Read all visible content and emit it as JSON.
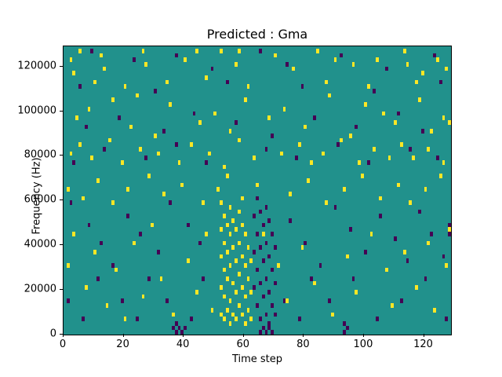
{
  "figure": {
    "title": "Predicted : Gma",
    "xlabel": "Time step",
    "ylabel": "Frequency (Hz)"
  },
  "chart_data": {
    "type": "heatmap",
    "title": "Predicted : Gma",
    "xlabel": "Time step",
    "ylabel": "Frequency (Hz)",
    "x_range": [
      0,
      129
    ],
    "y_range_hz": [
      0,
      129000
    ],
    "x_ticks": [
      0,
      20,
      40,
      60,
      80,
      100,
      120
    ],
    "y_ticks": [
      0,
      20000,
      40000,
      60000,
      80000,
      100000,
      120000
    ],
    "cell_width_steps": 1,
    "cell_height_hz": 2000,
    "f_unit_of_points": "kHz",
    "colors": {
      "background": "#21918c",
      "high": "#fde725",
      "low": "#440154",
      "axes": "#000000"
    },
    "legend": null,
    "grid": false,
    "yellow_cells": [
      [
        2,
        122
      ],
      [
        3,
        116
      ],
      [
        5,
        126
      ],
      [
        12,
        124
      ],
      [
        13,
        118
      ],
      [
        26,
        126
      ],
      [
        27,
        120
      ],
      [
        40,
        122
      ],
      [
        44,
        126
      ],
      [
        52,
        126
      ],
      [
        57,
        120
      ],
      [
        58,
        126
      ],
      [
        70,
        124
      ],
      [
        76,
        118
      ],
      [
        84,
        126
      ],
      [
        90,
        122
      ],
      [
        96,
        120
      ],
      [
        104,
        122
      ],
      [
        113,
        126
      ],
      [
        114,
        120
      ],
      [
        119,
        116
      ],
      [
        124,
        122
      ],
      [
        127,
        118
      ],
      [
        10,
        112
      ],
      [
        20,
        110
      ],
      [
        34,
        112
      ],
      [
        47,
        114
      ],
      [
        61,
        110
      ],
      [
        87,
        112
      ],
      [
        101,
        110
      ],
      [
        117,
        112
      ],
      [
        4,
        96
      ],
      [
        8,
        100
      ],
      [
        16,
        104
      ],
      [
        22,
        92
      ],
      [
        24,
        106
      ],
      [
        30,
        88
      ],
      [
        35,
        102
      ],
      [
        45,
        94
      ],
      [
        50,
        98
      ],
      [
        55,
        90
      ],
      [
        60,
        104
      ],
      [
        68,
        96
      ],
      [
        73,
        100
      ],
      [
        80,
        92
      ],
      [
        88,
        106
      ],
      [
        95,
        88
      ],
      [
        100,
        102
      ],
      [
        106,
        98
      ],
      [
        110,
        94
      ],
      [
        118,
        104
      ],
      [
        122,
        90
      ],
      [
        126,
        96
      ],
      [
        2,
        80
      ],
      [
        5,
        84
      ],
      [
        9,
        78
      ],
      [
        15,
        86
      ],
      [
        19,
        76
      ],
      [
        25,
        82
      ],
      [
        31,
        80
      ],
      [
        38,
        76
      ],
      [
        42,
        84
      ],
      [
        48,
        80
      ],
      [
        53,
        74
      ],
      [
        58,
        86
      ],
      [
        63,
        78
      ],
      [
        72,
        80
      ],
      [
        78,
        84
      ],
      [
        82,
        76
      ],
      [
        86,
        80
      ],
      [
        92,
        86
      ],
      [
        98,
        76
      ],
      [
        103,
        82
      ],
      [
        108,
        78
      ],
      [
        112,
        84
      ],
      [
        116,
        78
      ],
      [
        121,
        82
      ],
      [
        126,
        76
      ],
      [
        1,
        64
      ],
      [
        6,
        60
      ],
      [
        11,
        68
      ],
      [
        16,
        58
      ],
      [
        21,
        64
      ],
      [
        28,
        70
      ],
      [
        33,
        62
      ],
      [
        39,
        66
      ],
      [
        46,
        58
      ],
      [
        51,
        64
      ],
      [
        54,
        70
      ],
      [
        59,
        60
      ],
      [
        64,
        66
      ],
      [
        75,
        62
      ],
      [
        81,
        68
      ],
      [
        87,
        58
      ],
      [
        93,
        64
      ],
      [
        99,
        70
      ],
      [
        105,
        60
      ],
      [
        111,
        66
      ],
      [
        115,
        58
      ],
      [
        120,
        64
      ],
      [
        125,
        70
      ],
      [
        52,
        8
      ],
      [
        52,
        20
      ],
      [
        52,
        34
      ],
      [
        52,
        46
      ],
      [
        52,
        58
      ],
      [
        53,
        6
      ],
      [
        53,
        16
      ],
      [
        53,
        28
      ],
      [
        53,
        40
      ],
      [
        53,
        52
      ],
      [
        54,
        10
      ],
      [
        54,
        24
      ],
      [
        54,
        36
      ],
      [
        54,
        48
      ],
      [
        55,
        4
      ],
      [
        55,
        14
      ],
      [
        55,
        30
      ],
      [
        55,
        44
      ],
      [
        55,
        56
      ],
      [
        56,
        8
      ],
      [
        56,
        22
      ],
      [
        56,
        38
      ],
      [
        56,
        50
      ],
      [
        57,
        6
      ],
      [
        57,
        18
      ],
      [
        57,
        32
      ],
      [
        57,
        46
      ],
      [
        58,
        12
      ],
      [
        58,
        26
      ],
      [
        58,
        40
      ],
      [
        58,
        54
      ],
      [
        59,
        8
      ],
      [
        59,
        20
      ],
      [
        59,
        34
      ],
      [
        59,
        48
      ],
      [
        60,
        4
      ],
      [
        60,
        16
      ],
      [
        60,
        30
      ],
      [
        60,
        44
      ],
      [
        61,
        10
      ],
      [
        61,
        24
      ],
      [
        61,
        38
      ],
      [
        62,
        6
      ],
      [
        62,
        18
      ],
      [
        62,
        32
      ],
      [
        1,
        30
      ],
      [
        3,
        44
      ],
      [
        7,
        20
      ],
      [
        10,
        36
      ],
      [
        14,
        12
      ],
      [
        17,
        28
      ],
      [
        20,
        6
      ],
      [
        23,
        40
      ],
      [
        26,
        16
      ],
      [
        29,
        48
      ],
      [
        32,
        24
      ],
      [
        36,
        8
      ],
      [
        41,
        32
      ],
      [
        44,
        18
      ],
      [
        47,
        44
      ],
      [
        49,
        10
      ],
      [
        66,
        44
      ],
      [
        71,
        30
      ],
      [
        74,
        14
      ],
      [
        79,
        38
      ],
      [
        83,
        22
      ],
      [
        89,
        8
      ],
      [
        94,
        34
      ],
      [
        97,
        18
      ],
      [
        102,
        44
      ],
      [
        107,
        28
      ],
      [
        109,
        12
      ],
      [
        113,
        36
      ],
      [
        117,
        20
      ],
      [
        121,
        40
      ],
      [
        123,
        10
      ],
      [
        127,
        30
      ],
      [
        128,
        46
      ],
      [
        128,
        94
      ]
    ],
    "purple_cells": [
      [
        9,
        126
      ],
      [
        23,
        122
      ],
      [
        37,
        124
      ],
      [
        49,
        118
      ],
      [
        65,
        126
      ],
      [
        74,
        120
      ],
      [
        92,
        124
      ],
      [
        107,
        118
      ],
      [
        123,
        124
      ],
      [
        5,
        110
      ],
      [
        30,
        108
      ],
      [
        54,
        112
      ],
      [
        79,
        110
      ],
      [
        103,
        108
      ],
      [
        125,
        112
      ],
      [
        7,
        92
      ],
      [
        18,
        96
      ],
      [
        33,
        90
      ],
      [
        43,
        98
      ],
      [
        57,
        94
      ],
      [
        69,
        88
      ],
      [
        83,
        96
      ],
      [
        97,
        92
      ],
      [
        111,
        98
      ],
      [
        119,
        90
      ],
      [
        3,
        76
      ],
      [
        13,
        82
      ],
      [
        27,
        78
      ],
      [
        37,
        84
      ],
      [
        47,
        76
      ],
      [
        67,
        82
      ],
      [
        77,
        78
      ],
      [
        91,
        84
      ],
      [
        101,
        76
      ],
      [
        115,
        82
      ],
      [
        124,
        78
      ],
      [
        63,
        20
      ],
      [
        63,
        36
      ],
      [
        63,
        52
      ],
      [
        64,
        12
      ],
      [
        64,
        28
      ],
      [
        64,
        44
      ],
      [
        64,
        60
      ],
      [
        65,
        6
      ],
      [
        65,
        22
      ],
      [
        65,
        38
      ],
      [
        65,
        54
      ],
      [
        66,
        16
      ],
      [
        66,
        32
      ],
      [
        66,
        48
      ],
      [
        67,
        8
      ],
      [
        67,
        24
      ],
      [
        67,
        40
      ],
      [
        67,
        56
      ],
      [
        68,
        4
      ],
      [
        68,
        18
      ],
      [
        68,
        34
      ],
      [
        68,
        50
      ],
      [
        69,
        12
      ],
      [
        69,
        28
      ],
      [
        69,
        44
      ],
      [
        70,
        8
      ],
      [
        70,
        22
      ],
      [
        70,
        38
      ],
      [
        36,
        2
      ],
      [
        37,
        0
      ],
      [
        37,
        4
      ],
      [
        38,
        2
      ],
      [
        39,
        0
      ],
      [
        40,
        2
      ],
      [
        65,
        0
      ],
      [
        66,
        2
      ],
      [
        67,
        0
      ],
      [
        68,
        2
      ],
      [
        69,
        0
      ],
      [
        93,
        0
      ],
      [
        94,
        2
      ],
      [
        93,
        4
      ],
      [
        2,
        58
      ],
      [
        8,
        48
      ],
      [
        12,
        40
      ],
      [
        16,
        30
      ],
      [
        21,
        52
      ],
      [
        25,
        44
      ],
      [
        31,
        36
      ],
      [
        35,
        58
      ],
      [
        41,
        48
      ],
      [
        45,
        40
      ],
      [
        75,
        50
      ],
      [
        80,
        40
      ],
      [
        85,
        30
      ],
      [
        90,
        56
      ],
      [
        95,
        46
      ],
      [
        100,
        36
      ],
      [
        105,
        52
      ],
      [
        110,
        42
      ],
      [
        114,
        32
      ],
      [
        118,
        54
      ],
      [
        122,
        44
      ],
      [
        126,
        34
      ],
      [
        1,
        14
      ],
      [
        6,
        6
      ],
      [
        11,
        24
      ],
      [
        19,
        14
      ],
      [
        24,
        6
      ],
      [
        28,
        24
      ],
      [
        34,
        14
      ],
      [
        42,
        6
      ],
      [
        46,
        24
      ],
      [
        73,
        14
      ],
      [
        78,
        6
      ],
      [
        82,
        24
      ],
      [
        88,
        14
      ],
      [
        96,
        24
      ],
      [
        104,
        6
      ],
      [
        112,
        14
      ],
      [
        120,
        24
      ],
      [
        127,
        6
      ],
      [
        128,
        44
      ],
      [
        128,
        48
      ]
    ]
  }
}
